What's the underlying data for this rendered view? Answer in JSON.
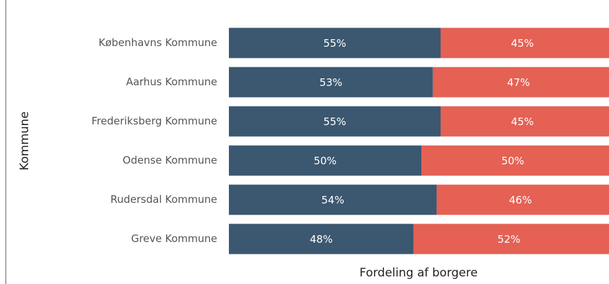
{
  "chart_data": {
    "type": "stacked_bar_100_horizontal",
    "y_label": "Kommune",
    "x_label": "Fordeling af borgere",
    "categories": [
      "Københavns Kommune",
      "Aarhus Kommune",
      "Frederiksberg Kommune",
      "Odense Kommune",
      "Rudersdal Kommune",
      "Greve Kommune"
    ],
    "series": [
      {
        "color": "#3b5870",
        "values": [
          55,
          53,
          55,
          50,
          54,
          48
        ],
        "value_labels": [
          "55%",
          "53%",
          "55%",
          "50%",
          "54%",
          "48%"
        ]
      },
      {
        "color": "#e46154",
        "values": [
          45,
          47,
          45,
          50,
          46,
          52
        ],
        "value_labels": [
          "45%",
          "47%",
          "45%",
          "50%",
          "46%",
          "52%"
        ]
      }
    ],
    "xlim": [
      0,
      100
    ]
  }
}
